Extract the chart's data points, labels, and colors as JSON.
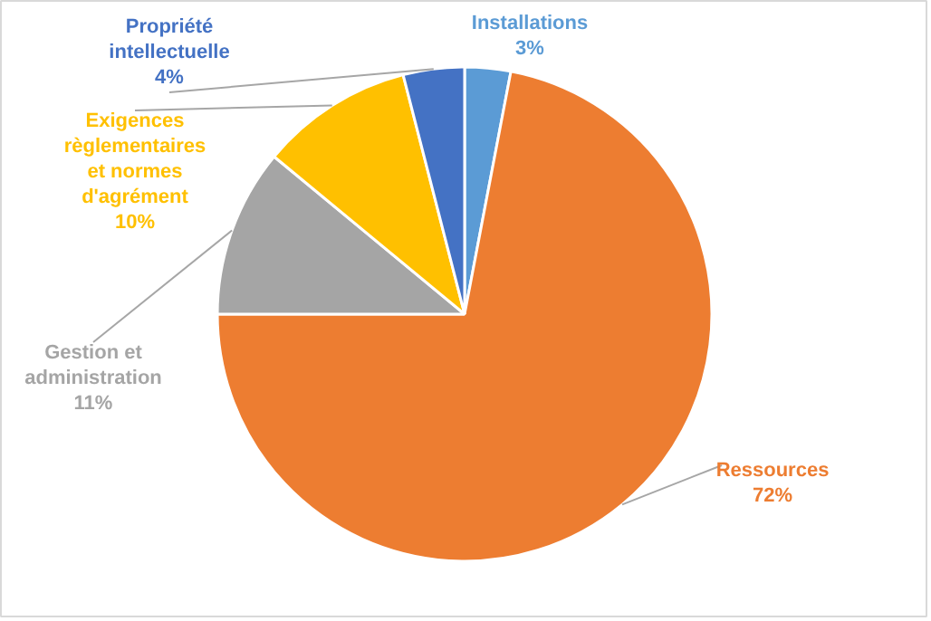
{
  "chart_data": {
    "type": "pie",
    "categories": [
      "Installations",
      "Ressources",
      "Gestion et administration",
      "Exigences règlementaires et normes d'agrément",
      "Propriété intellectuelle"
    ],
    "values": [
      3,
      72,
      11,
      10,
      4
    ],
    "colors": [
      "#5b9bd5",
      "#ed7d31",
      "#a5a5a5",
      "#ffc000",
      "#4472c4"
    ],
    "value_labels": [
      "3%",
      "72%",
      "11%",
      "10%",
      "4%"
    ],
    "legend": false
  }
}
